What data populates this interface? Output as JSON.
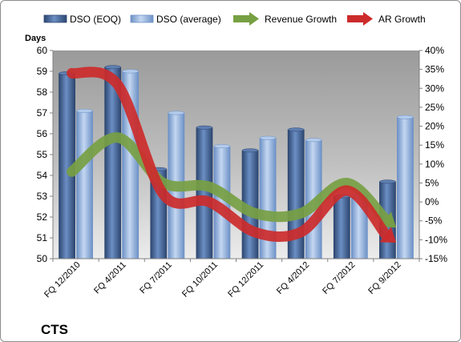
{
  "chart_data": {
    "type": "bar",
    "company": "CTS",
    "y_axis_title": "Days",
    "categories": [
      "FQ 12/2010",
      "FQ 4/2011",
      "FQ 7/2011",
      "FQ 10/2011",
      "FQ 12/2011",
      "FQ 4/2012",
      "FQ 7/2012",
      "FQ 9/2012"
    ],
    "left_axis": {
      "ylim": [
        50,
        60
      ],
      "ticks": [
        50,
        51,
        52,
        53,
        54,
        55,
        56,
        57,
        58,
        59,
        60
      ]
    },
    "right_axis": {
      "ylim": [
        -15,
        40
      ],
      "ticks": [
        "-15%",
        "-10%",
        "-5%",
        "0%",
        "5%",
        "10%",
        "15%",
        "20%",
        "25%",
        "30%",
        "35%",
        "40%"
      ]
    },
    "series": [
      {
        "name": "DSO (EOQ)",
        "axis": "left",
        "kind": "bar",
        "color": "#4a6896",
        "values": [
          58.9,
          59.2,
          54.3,
          56.3,
          55.2,
          56.2,
          53.0,
          53.7
        ]
      },
      {
        "name": "DSO (average)",
        "axis": "left",
        "kind": "bar",
        "color": "#8fb0dc",
        "values": [
          57.1,
          59.0,
          57.0,
          55.4,
          55.8,
          55.7,
          53.0,
          56.8
        ]
      },
      {
        "name": "Revenue Growth",
        "axis": "right",
        "kind": "arrow",
        "color": "#77a043",
        "values": [
          8,
          17,
          5,
          4,
          -3,
          -3,
          5,
          -6
        ]
      },
      {
        "name": "AR Growth",
        "axis": "right",
        "kind": "arrow",
        "color": "#cc2b2b",
        "values": [
          34,
          31,
          2,
          0,
          -8,
          -8,
          3,
          -10
        ]
      }
    ],
    "grid": false,
    "legend": "top"
  }
}
